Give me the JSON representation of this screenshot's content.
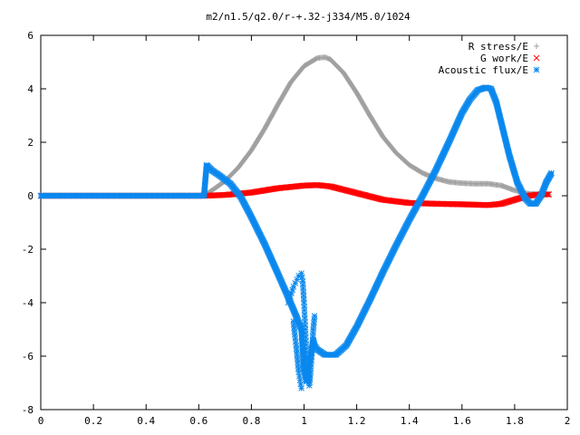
{
  "chart_data": {
    "type": "scatter",
    "title": "m2/n1.5/q2.0/r-+.32-j334/M5.0/1024",
    "xlabel": "",
    "ylabel": "",
    "xlim": [
      0,
      2
    ],
    "ylim": [
      -8,
      6
    ],
    "x_ticks": [
      "0",
      "0.2",
      "0.4",
      "0.6",
      "0.8",
      "1",
      "1.2",
      "1.4",
      "1.6",
      "1.8",
      "2"
    ],
    "y_ticks": [
      "6",
      "4",
      "2",
      "0",
      "-2",
      "-4",
      "-6",
      "-8"
    ],
    "grid": false,
    "legend_position": "top-right",
    "series": [
      {
        "name": "R stress/E",
        "marker": "+",
        "color": "#a0a0a0",
        "x": [
          0,
          0.62,
          0.65,
          0.7,
          0.75,
          0.8,
          0.85,
          0.9,
          0.95,
          1.0,
          1.05,
          1.08,
          1.1,
          1.15,
          1.2,
          1.25,
          1.3,
          1.35,
          1.4,
          1.45,
          1.5,
          1.55,
          1.6,
          1.65,
          1.7,
          1.75,
          1.8,
          1.85,
          1.9,
          1.93
        ],
        "y": [
          0,
          0,
          0.2,
          0.55,
          1.05,
          1.7,
          2.5,
          3.4,
          4.25,
          4.85,
          5.15,
          5.18,
          5.1,
          4.6,
          3.85,
          3.0,
          2.2,
          1.6,
          1.15,
          0.85,
          0.65,
          0.52,
          0.47,
          0.45,
          0.45,
          0.38,
          0.2,
          0.08,
          0.05,
          0.05
        ]
      },
      {
        "name": "G work/E",
        "marker": "x",
        "color": "#ff0000",
        "x": [
          0,
          0.62,
          0.7,
          0.8,
          0.9,
          1.0,
          1.05,
          1.1,
          1.2,
          1.3,
          1.4,
          1.5,
          1.6,
          1.7,
          1.75,
          1.8,
          1.85,
          1.9,
          1.93
        ],
        "y": [
          0,
          0,
          0.03,
          0.12,
          0.28,
          0.38,
          0.4,
          0.35,
          0.1,
          -0.15,
          -0.27,
          -0.3,
          -0.32,
          -0.35,
          -0.3,
          -0.15,
          0.0,
          0.05,
          0.05
        ]
      },
      {
        "name": "Acoustic flux/E",
        "marker": "*",
        "color": "#0a88ee",
        "x": [
          0,
          0.62,
          0.63,
          0.65,
          0.68,
          0.72,
          0.76,
          0.8,
          0.85,
          0.9,
          0.94,
          0.97,
          0.99,
          1.0,
          1.01,
          1.02,
          1.03,
          1.035,
          1.04,
          1.05,
          1.08,
          1.12,
          1.16,
          1.2,
          1.25,
          1.3,
          1.35,
          1.4,
          1.45,
          1.5,
          1.55,
          1.6,
          1.63,
          1.66,
          1.69,
          1.71,
          1.73,
          1.75,
          1.78,
          1.81,
          1.84,
          1.86,
          1.88,
          1.9,
          1.92,
          1.94
        ],
        "y": [
          0,
          0,
          1.15,
          0.95,
          0.75,
          0.45,
          -0.05,
          -0.8,
          -1.8,
          -2.9,
          -3.8,
          -4.5,
          -5.0,
          -6.5,
          -6.95,
          -6.3,
          -5.7,
          -5.4,
          -5.6,
          -5.75,
          -5.95,
          -5.95,
          -5.6,
          -4.9,
          -3.9,
          -2.85,
          -1.85,
          -0.9,
          0.0,
          0.95,
          2.0,
          3.1,
          3.6,
          3.95,
          4.05,
          4.0,
          3.5,
          2.7,
          1.5,
          0.5,
          -0.1,
          -0.3,
          -0.3,
          0.0,
          0.5,
          0.85
        ]
      },
      {
        "name": "",
        "marker": "*",
        "color": "#0a88ee",
        "x": [
          0.94,
          0.96,
          0.98,
          0.99,
          0.995,
          1.0,
          1.005,
          1.01,
          1.02,
          1.025,
          1.03,
          1.035,
          1.04
        ],
        "y": [
          -4.0,
          -3.4,
          -3.0,
          -2.9,
          -3.2,
          -4.0,
          -5.0,
          -6.0,
          -7.1,
          -6.6,
          -5.9,
          -5.0,
          -4.5
        ]
      },
      {
        "name": "",
        "marker": "*",
        "color": "#0a88ee",
        "x": [
          0.96,
          0.965,
          0.97,
          0.975,
          0.98,
          0.985,
          0.99
        ],
        "y": [
          -4.7,
          -5.2,
          -5.6,
          -6.1,
          -6.6,
          -6.9,
          -7.2
        ]
      }
    ]
  }
}
